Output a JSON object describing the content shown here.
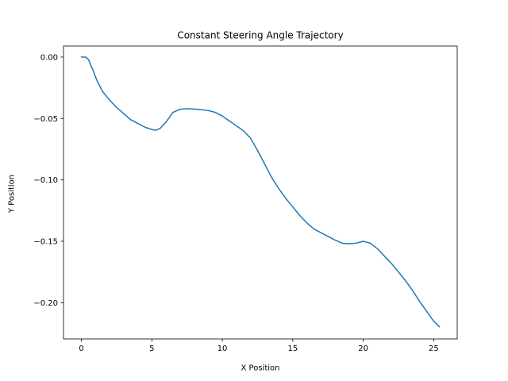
{
  "chart_data": {
    "type": "line",
    "title": "Constant Steering Angle Trajectory",
    "xlabel": "X Position",
    "ylabel": "Y Position",
    "xlim": [
      -1.27,
      26.67
    ],
    "ylim": [
      -0.2295,
      0.009
    ],
    "xticks": [
      0,
      5,
      10,
      15,
      20,
      25
    ],
    "xtick_labels": [
      "0",
      "5",
      "10",
      "15",
      "20",
      "25"
    ],
    "yticks": [
      0.0,
      -0.05,
      -0.1,
      -0.15,
      -0.2
    ],
    "ytick_labels": [
      "0.00",
      "−0.05",
      "−0.10",
      "−0.15",
      "−0.20"
    ],
    "grid": false,
    "color": "#1f77b4",
    "series": [
      {
        "x": [
          0.0,
          0.3,
          0.5,
          0.8,
          1.1,
          1.5,
          2.0,
          2.5,
          3.0,
          3.5,
          4.0,
          4.5,
          5.0,
          5.3,
          5.6,
          6.0,
          6.5,
          7.0,
          7.5,
          8.0,
          8.5,
          9.0,
          9.5,
          10.0,
          10.5,
          11.0,
          11.5,
          12.0,
          12.5,
          13.0,
          13.5,
          14.0,
          14.5,
          15.0,
          15.5,
          16.0,
          16.5,
          17.0,
          17.5,
          18.0,
          18.5,
          19.0,
          19.5,
          20.0,
          20.5,
          21.0,
          21.5,
          22.0,
          22.5,
          23.0,
          23.5,
          24.0,
          24.5,
          25.0,
          25.4
        ],
        "y": [
          0.0,
          0.0,
          -0.002,
          -0.01,
          -0.019,
          -0.028,
          -0.035,
          -0.041,
          -0.046,
          -0.051,
          -0.054,
          -0.057,
          -0.059,
          -0.0595,
          -0.058,
          -0.053,
          -0.045,
          -0.0425,
          -0.042,
          -0.0423,
          -0.0428,
          -0.0435,
          -0.045,
          -0.048,
          -0.052,
          -0.056,
          -0.06,
          -0.066,
          -0.076,
          -0.087,
          -0.098,
          -0.107,
          -0.115,
          -0.122,
          -0.129,
          -0.135,
          -0.14,
          -0.143,
          -0.146,
          -0.149,
          -0.1515,
          -0.152,
          -0.1515,
          -0.15,
          -0.1515,
          -0.156,
          -0.162,
          -0.168,
          -0.175,
          -0.182,
          -0.19,
          -0.199,
          -0.207,
          -0.215,
          -0.2195
        ]
      }
    ]
  }
}
